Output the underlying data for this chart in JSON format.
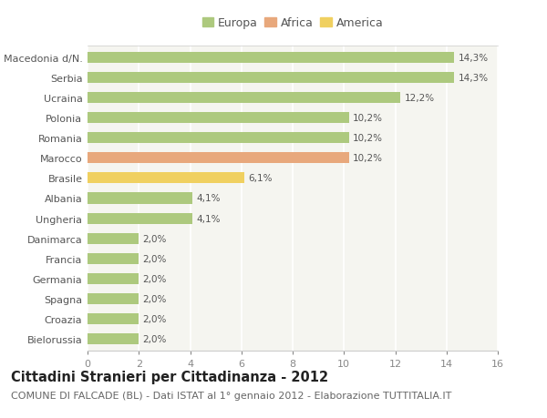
{
  "countries": [
    "Macedonia d/N.",
    "Serbia",
    "Ucraina",
    "Polonia",
    "Romania",
    "Marocco",
    "Brasile",
    "Albania",
    "Ungheria",
    "Danimarca",
    "Francia",
    "Germania",
    "Spagna",
    "Croazia",
    "Bielorussia"
  ],
  "values": [
    14.3,
    14.3,
    12.2,
    10.2,
    10.2,
    10.2,
    6.1,
    4.1,
    4.1,
    2.0,
    2.0,
    2.0,
    2.0,
    2.0,
    2.0
  ],
  "labels": [
    "14,3%",
    "14,3%",
    "12,2%",
    "10,2%",
    "10,2%",
    "10,2%",
    "6,1%",
    "4,1%",
    "4,1%",
    "2,0%",
    "2,0%",
    "2,0%",
    "2,0%",
    "2,0%",
    "2,0%"
  ],
  "categories": [
    "Europa",
    "Africa",
    "America"
  ],
  "continent": [
    "Europa",
    "Europa",
    "Europa",
    "Europa",
    "Europa",
    "Africa",
    "America",
    "Europa",
    "Europa",
    "Europa",
    "Europa",
    "Europa",
    "Europa",
    "Europa",
    "Europa"
  ],
  "colors": {
    "Europa": "#adc97e",
    "Africa": "#e8a87c",
    "America": "#f0d060"
  },
  "background_color": "#ffffff",
  "plot_bg_color": "#f5f5f0",
  "grid_color": "#ffffff",
  "xlim": [
    0,
    16
  ],
  "xticks": [
    0,
    2,
    4,
    6,
    8,
    10,
    12,
    14,
    16
  ],
  "title": "Cittadini Stranieri per Cittadinanza - 2012",
  "subtitle": "COMUNE DI FALCADE (BL) - Dati ISTAT al 1° gennaio 2012 - Elaborazione TUTTITALIA.IT",
  "title_fontsize": 10.5,
  "subtitle_fontsize": 8.0,
  "label_fontsize": 7.5,
  "tick_fontsize": 8.0,
  "legend_fontsize": 9.0,
  "bar_height": 0.55
}
